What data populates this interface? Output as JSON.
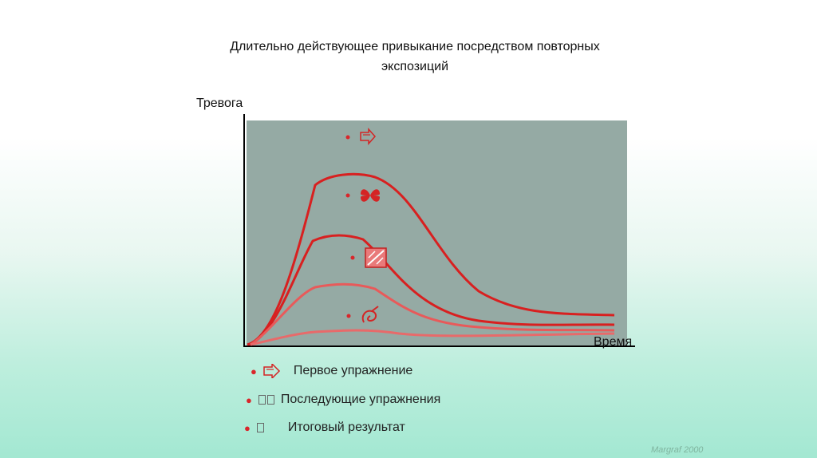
{
  "title_line1": "Длительно действующее привыкание посредством повторных",
  "title_line2": "экспозиций",
  "axes": {
    "y_label": "Тревога",
    "x_label": "Время"
  },
  "legend": [
    {
      "label": "Первое упражнение",
      "icon": "arrow-outline-icon"
    },
    {
      "label": "Последующие упражнения",
      "icon": "missing-glyph-icon"
    },
    {
      "label": "Итоговый результат",
      "icon": "missing-glyph-icon"
    }
  ],
  "source": "Margraf 2000",
  "colors": {
    "curve_dark": "#d82020",
    "curve_light": "#e85a5a",
    "panel": "#95aaa4",
    "bullet": "#d9262b"
  }
}
